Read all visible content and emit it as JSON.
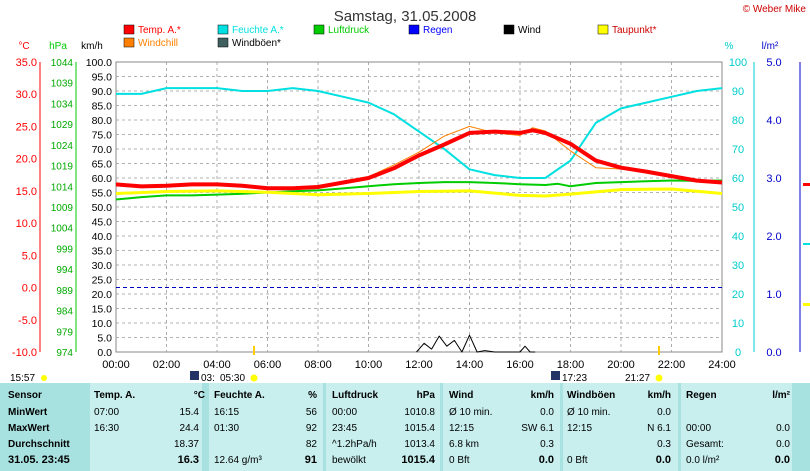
{
  "page_title": "Samstag, 31.05.2008",
  "credit": "© Weber Mike",
  "legend": [
    {
      "label": "Temp. A.*",
      "color": "#ff0000"
    },
    {
      "label": "Feuchte A.*",
      "color": "#00e0e0"
    },
    {
      "label": "Luftdruck",
      "color": "#00cc00"
    },
    {
      "label": "Regen",
      "color": "#0000ff"
    },
    {
      "label": "Wind",
      "color": "#000000"
    },
    {
      "label": "Taupunkt*",
      "color": "#ffff00"
    },
    {
      "label": "Windchill",
      "color": "#ff8000"
    },
    {
      "label": "Windböen*",
      "color": "#406060"
    }
  ],
  "axis_units": {
    "temp": "°C",
    "pressure": "hPa",
    "wind": "km/h",
    "humidity": "%",
    "rain": "l/m²"
  },
  "chart_data": {
    "type": "line",
    "title": "Samstag, 31.05.2008",
    "x_ticks": [
      "00:00",
      "02:00",
      "04:00",
      "06:00",
      "08:00",
      "10:00",
      "12:00",
      "14:00",
      "16:00",
      "18:00",
      "20:00",
      "22:00",
      "24:00"
    ],
    "axes": {
      "temp": {
        "range": [
          -10,
          35
        ],
        "ticks": [
          "35.0",
          "30.0",
          "25.0",
          "20.0",
          "15.0",
          "10.0",
          "5.0",
          "0.0",
          "-5.0",
          "-10.0"
        ]
      },
      "pressure": {
        "range": [
          974,
          1044
        ],
        "ticks": [
          "1044",
          "1039",
          "1034",
          "1029",
          "1024",
          "1019",
          "1014",
          "1009",
          "1004",
          "999",
          "994",
          "989",
          "984",
          "979",
          "974"
        ]
      },
      "wind": {
        "range": [
          0,
          100
        ],
        "ticks": [
          "100.0",
          "95.0",
          "90.0",
          "85.0",
          "80.0",
          "75.0",
          "70.0",
          "65.0",
          "60.0",
          "55.0",
          "50.0",
          "45.0",
          "40.0",
          "35.0",
          "30.0",
          "25.0",
          "20.0",
          "15.0",
          "10.0",
          "5.0",
          "0.0"
        ]
      },
      "humidity": {
        "range": [
          0,
          100
        ],
        "ticks": [
          "100",
          "90",
          "80",
          "70",
          "60",
          "50",
          "40",
          "30",
          "20",
          "10",
          "0"
        ]
      },
      "rain": {
        "range": [
          0,
          5
        ],
        "ticks": [
          "5.0",
          "4.0",
          "3.0",
          "2.0",
          "1.0",
          "0.0"
        ]
      }
    },
    "series": [
      {
        "name": "Temp. A.*",
        "axis": "temp",
        "color": "#ff0000",
        "width": 4,
        "x": [
          0,
          1,
          2,
          3,
          4,
          5,
          6,
          7,
          8,
          9,
          10,
          11,
          12,
          13,
          14,
          15,
          16,
          16.5,
          17,
          18,
          19,
          20,
          21,
          22,
          23,
          24
        ],
        "y": [
          16.0,
          15.7,
          15.8,
          16.0,
          16.0,
          15.8,
          15.4,
          15.4,
          15.6,
          16.3,
          17.0,
          18.5,
          20.5,
          22.2,
          24.0,
          24.2,
          24.0,
          24.4,
          24.0,
          22.3,
          19.7,
          18.6,
          18.0,
          17.3,
          16.6,
          16.3
        ]
      },
      {
        "name": "Windchill",
        "axis": "temp",
        "color": "#ff8000",
        "width": 1,
        "x": [
          0,
          2,
          4,
          6,
          8,
          9,
          10,
          11,
          12,
          13,
          14,
          15,
          16,
          16.5,
          17,
          18,
          19,
          20,
          21,
          22,
          23,
          24
        ],
        "y": [
          16.0,
          15.8,
          16.0,
          15.4,
          15.6,
          16.3,
          17.2,
          19.0,
          21.0,
          23.5,
          25.0,
          24.0,
          23.6,
          24.8,
          24.3,
          21.2,
          18.6,
          18.4,
          17.9,
          17.2,
          16.4,
          16.3
        ]
      },
      {
        "name": "Feuchte A.*",
        "axis": "humidity",
        "color": "#00e0e0",
        "width": 2,
        "x": [
          0,
          1,
          2,
          3,
          4,
          5,
          6,
          7,
          8,
          9,
          10,
          11,
          12,
          13,
          14,
          15,
          16,
          17,
          18,
          19,
          20,
          21,
          22,
          23,
          24
        ],
        "y": [
          89,
          89,
          91,
          91,
          91,
          90,
          90,
          91,
          90,
          88,
          86,
          82,
          76,
          70,
          63,
          61,
          60,
          60,
          66,
          79,
          84,
          86,
          88,
          90,
          91
        ]
      },
      {
        "name": "Taupunkt*",
        "axis": "temp",
        "color": "#ffff00",
        "width": 3,
        "x": [
          0,
          2,
          4,
          6,
          8,
          10,
          12,
          14,
          16,
          17,
          18,
          20,
          22,
          24
        ],
        "y": [
          14.6,
          14.9,
          15.0,
          14.8,
          14.4,
          14.6,
          14.9,
          15.0,
          14.3,
          14.2,
          14.5,
          15.2,
          15.3,
          14.6
        ]
      },
      {
        "name": "Luftdruck",
        "axis": "pressure",
        "color": "#00cc00",
        "width": 2,
        "x": [
          0,
          1,
          2,
          3,
          4,
          5,
          6,
          7,
          8,
          9,
          10,
          11,
          12,
          13,
          14,
          15,
          16,
          17,
          17.5,
          18,
          19,
          20,
          21,
          22,
          23,
          24
        ],
        "y": [
          1010.8,
          1011.4,
          1011.8,
          1011.8,
          1012.0,
          1012.2,
          1012.5,
          1012.8,
          1013.0,
          1013.5,
          1014.0,
          1014.5,
          1014.8,
          1015.0,
          1015.0,
          1014.8,
          1014.5,
          1014.3,
          1014.6,
          1014.0,
          1014.8,
          1015.0,
          1015.2,
          1015.4,
          1015.3,
          1015.4
        ]
      },
      {
        "name": "Wind",
        "axis": "wind",
        "color": "#000000",
        "width": 1,
        "x": [
          11.9,
          12.2,
          12.5,
          12.8,
          13.1,
          13.4,
          13.7,
          14.0,
          14.3,
          14.6,
          15.0,
          16.0,
          16.2,
          16.4,
          16.6
        ],
        "y": [
          0,
          3,
          1,
          5.5,
          2,
          4,
          0,
          5.8,
          0,
          0.5,
          0,
          0,
          2,
          0,
          0
        ]
      }
    ],
    "reference_lines": [
      {
        "axis": "temp",
        "value": 0,
        "color": "#0000c0",
        "style": "dashed"
      }
    ],
    "sun_markers": {
      "sunrise": "05:30",
      "sunset": "21:27",
      "moon": [
        "03:",
        "17:23"
      ],
      "left_label": "15:57"
    }
  },
  "table": {
    "headers": [
      "Sensor",
      "Temp. A.",
      "°C",
      "Feuchte A.",
      "%",
      "Luftdruck",
      "hPa",
      "Wind",
      "km/h",
      "Windböen",
      "km/h",
      "Regen",
      "l/m²"
    ],
    "rows": [
      {
        "label": "MinWert",
        "c": [
          "07:00",
          "15.4",
          "16:15",
          "56",
          "00:00",
          "1010.8",
          "Ø 10 min.",
          "0.0",
          "Ø 10 min.",
          "0.0",
          "",
          ""
        ]
      },
      {
        "label": "MaxWert",
        "c": [
          "16:30",
          "24.4",
          "01:30",
          "92",
          "23:45",
          "1015.4",
          "12:15",
          "SW 6.1",
          "12:15",
          "N 6.1",
          "00:00",
          "0.0"
        ]
      },
      {
        "label": "Durchschnitt",
        "c": [
          "",
          "18.37",
          "",
          "82",
          "^1.2hPa/h",
          "1013.4",
          "6.8 km",
          "0.3",
          "",
          "0.3",
          "Gesamt:",
          "0.0"
        ]
      },
      {
        "label": "31.05. 23:45",
        "c": [
          "",
          "16.3",
          "12.64 g/m³",
          "91",
          "bewölkt",
          "1015.4",
          "0 Bft",
          "0.0",
          "0 Bft",
          "0.0",
          "0.0 l/m²",
          "0.0"
        ]
      }
    ]
  }
}
